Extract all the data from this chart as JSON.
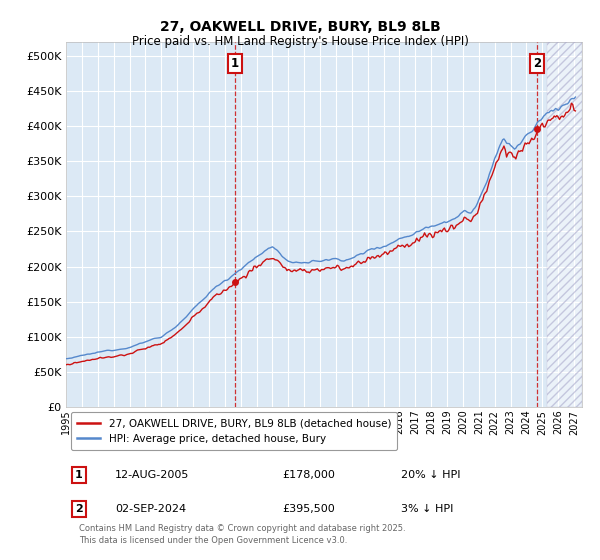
{
  "title_line1": "27, OAKWELL DRIVE, BURY, BL9 8LB",
  "title_line2": "Price paid vs. HM Land Registry's House Price Index (HPI)",
  "legend_red": "27, OAKWELL DRIVE, BURY, BL9 8LB (detached house)",
  "legend_blue": "HPI: Average price, detached house, Bury",
  "annotation1_label": "1",
  "annotation1_date": "12-AUG-2005",
  "annotation1_price": "£178,000",
  "annotation1_hpi": "20% ↓ HPI",
  "annotation1_year": 2005.62,
  "annotation2_label": "2",
  "annotation2_date": "02-SEP-2024",
  "annotation2_price": "£395,500",
  "annotation2_hpi": "3% ↓ HPI",
  "annotation2_year": 2024.67,
  "ylim_min": 0,
  "ylim_max": 520000,
  "xlim_min": 1995,
  "xlim_max": 2027,
  "background_color": "#ffffff",
  "chart_bg_color": "#dce9f5",
  "grid_color": "#ffffff",
  "red_color": "#cc1111",
  "blue_color": "#5588cc",
  "hatch_start": 2025.3,
  "footnote": "Contains HM Land Registry data © Crown copyright and database right 2025.\nThis data is licensed under the Open Government Licence v3.0.",
  "sale1_price": 178000,
  "sale2_price": 395500
}
